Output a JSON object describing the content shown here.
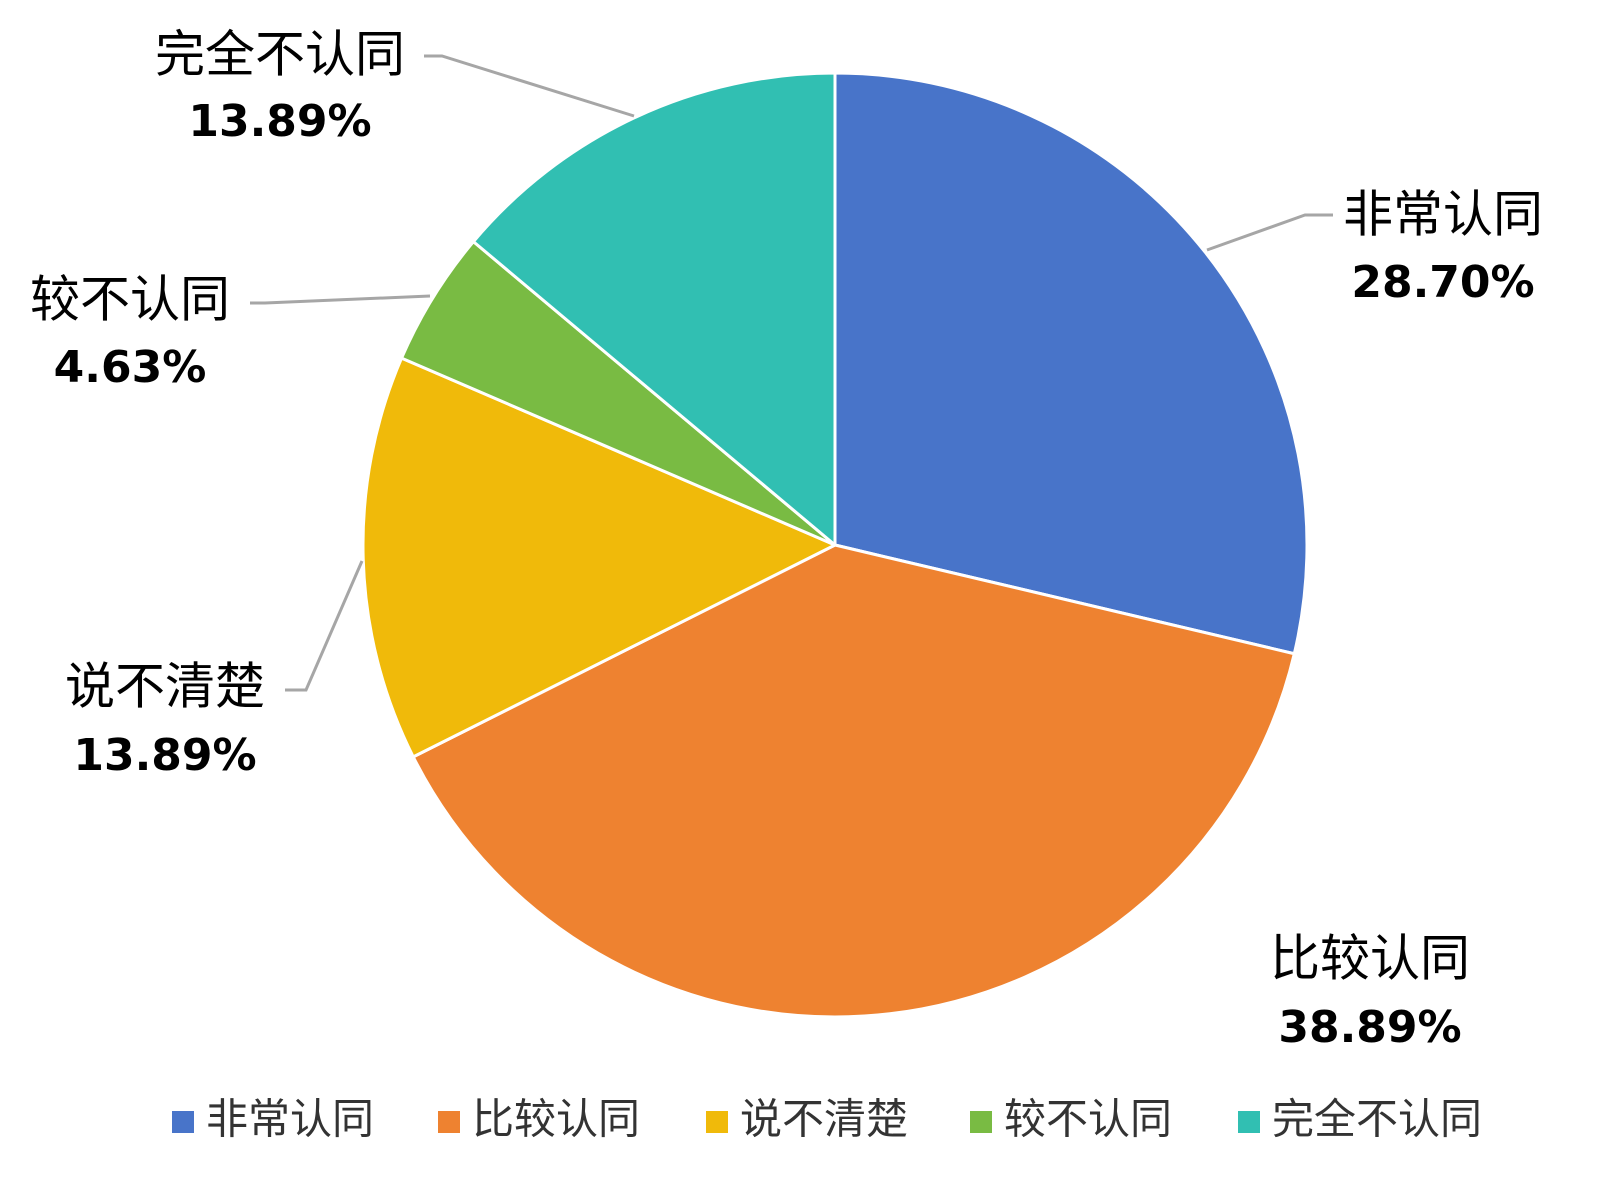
{
  "chart_data": {
    "type": "pie",
    "start_angle_deg": 0,
    "direction": "clockwise",
    "slice_border_color": "#ffffff",
    "leader_line_color": "#a6a6a6",
    "legend_position": "bottom",
    "slices": [
      {
        "label": "非常认同",
        "value": 28.7,
        "value_label": "28.70%",
        "color": "#4874C9"
      },
      {
        "label": "比较认同",
        "value": 38.89,
        "value_label": "38.89%",
        "color": "#EE8230"
      },
      {
        "label": "说不清楚",
        "value": 13.89,
        "value_label": "13.89%",
        "color": "#F0BA0A"
      },
      {
        "label": "较不认同",
        "value": 4.63,
        "value_label": "4.63%",
        "color": "#79BB43"
      },
      {
        "label": "完全不认同",
        "value": 13.89,
        "value_label": "13.89%",
        "color": "#31BFB2"
      }
    ]
  }
}
